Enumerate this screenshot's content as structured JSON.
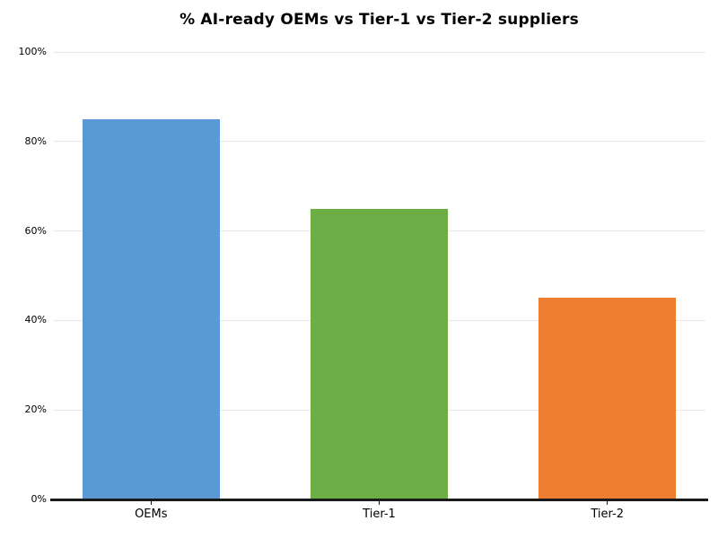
{
  "chart_data": {
    "type": "bar",
    "title": "% AI-ready OEMs vs Tier-1 vs Tier-2 suppliers",
    "categories": [
      "OEMs",
      "Tier-1",
      "Tier-2"
    ],
    "values": [
      85,
      65,
      45
    ],
    "value_unit": "%",
    "bar_colors": [
      "#5b99d5",
      "#6cae45",
      "#ee7d31"
    ],
    "xlabel": "",
    "ylabel": "",
    "ylim": [
      0,
      100
    ],
    "ytick_values": [
      0,
      20,
      40,
      60,
      80,
      100
    ],
    "ytick_labels": [
      "0%",
      "20%",
      "40%",
      "60%",
      "80%",
      "100%"
    ],
    "grid": "horizontal-only",
    "legend": "none",
    "colors": {
      "background": "#ffffff",
      "gridline": "#e8e8e8",
      "axis_line": "#1a1a1a",
      "text": "#000000"
    }
  }
}
